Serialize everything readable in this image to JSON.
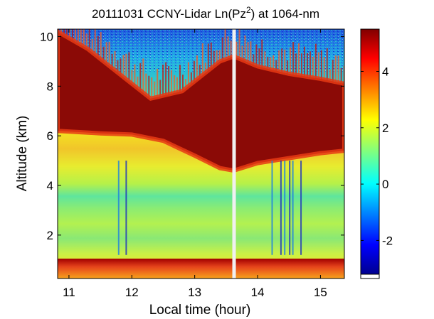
{
  "chart_data": {
    "type": "heatmap",
    "title": "20111031 CCNY-Lidar Ln(Pz",
    "title_superscript": "2",
    "title_suffix": ") at 1064-nm",
    "xlabel": "Local time (hour)",
    "ylabel": "Altitude (km)",
    "xlim": [
      10.82,
      15.38
    ],
    "ylim": [
      0.25,
      10.3
    ],
    "xticks": [
      11,
      12,
      13,
      14,
      15
    ],
    "xtick_labels": [
      "11",
      "12",
      "13",
      "14",
      "15"
    ],
    "yticks": [
      2,
      4,
      6,
      8,
      10
    ],
    "ytick_labels": [
      "2",
      "4",
      "6",
      "8",
      "10"
    ],
    "data_gap_time": 13.62,
    "colormap": "jet",
    "colorbar": {
      "range": [
        -3.2,
        5.5
      ],
      "ticks": [
        -2,
        0,
        2,
        4
      ],
      "tick_labels": [
        "-2",
        "0",
        "2",
        "4"
      ]
    },
    "cloud_base_km": [
      [
        10.82,
        6.2
      ],
      [
        11.5,
        6.1
      ],
      [
        12.0,
        6.05
      ],
      [
        12.5,
        5.8
      ],
      [
        13.0,
        5.2
      ],
      [
        13.4,
        4.7
      ],
      [
        13.62,
        4.6
      ],
      [
        14.0,
        4.9
      ],
      [
        14.5,
        5.1
      ],
      [
        15.0,
        5.3
      ],
      [
        15.38,
        5.4
      ]
    ],
    "cloud_top_km": [
      [
        10.82,
        10.2
      ],
      [
        11.3,
        9.5
      ],
      [
        11.8,
        8.5
      ],
      [
        12.3,
        7.5
      ],
      [
        12.8,
        7.8
      ],
      [
        13.4,
        9.0
      ],
      [
        13.62,
        9.2
      ],
      [
        14.0,
        8.8
      ],
      [
        14.5,
        8.5
      ],
      [
        15.0,
        8.3
      ],
      [
        15.38,
        8.1
      ]
    ]
  }
}
